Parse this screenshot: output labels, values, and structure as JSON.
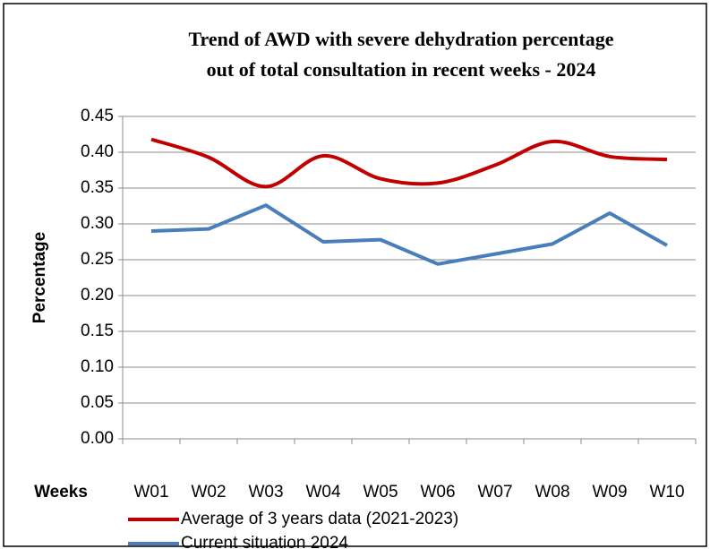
{
  "chart_data": {
    "type": "line",
    "title": [
      "Trend of AWD with severe dehydration percentage",
      "out of total consultation in recent weeks - 2024"
    ],
    "y_label": "Percentage",
    "x_label": "Weeks",
    "categories": [
      "W01",
      "W02",
      "W03",
      "W04",
      "W05",
      "W06",
      "W07",
      "W08",
      "W09",
      "W10"
    ],
    "series": [
      {
        "name": "Average of 3 years data (2021-2023)",
        "color": "#c00000",
        "smooth": true,
        "values": [
          0.418,
          0.393,
          0.352,
          0.395,
          0.363,
          0.357,
          0.382,
          0.415,
          0.394,
          0.39
        ]
      },
      {
        "name": "Current situation 2024",
        "color": "#4a7ebb",
        "smooth": false,
        "values": [
          0.29,
          0.293,
          0.326,
          0.275,
          0.278,
          0.244,
          0.258,
          0.272,
          0.315,
          0.27
        ]
      }
    ],
    "ylim": [
      0,
      0.45
    ],
    "yticks": [
      {
        "value": 0,
        "label": "0.00"
      },
      {
        "value": 0.05,
        "label": "0.05"
      },
      {
        "value": 0.1,
        "label": "0.10"
      },
      {
        "value": 0.15,
        "label": "0.15"
      },
      {
        "value": 0.2,
        "label": "0.20"
      },
      {
        "value": 0.25,
        "label": "0.25"
      },
      {
        "value": 0.3,
        "label": "0.30"
      },
      {
        "value": 0.35,
        "label": "0.35"
      },
      {
        "value": 0.4,
        "label": "0.40"
      },
      {
        "value": 0.45,
        "label": "0.45"
      }
    ],
    "grid": true,
    "legend": "bottom"
  }
}
